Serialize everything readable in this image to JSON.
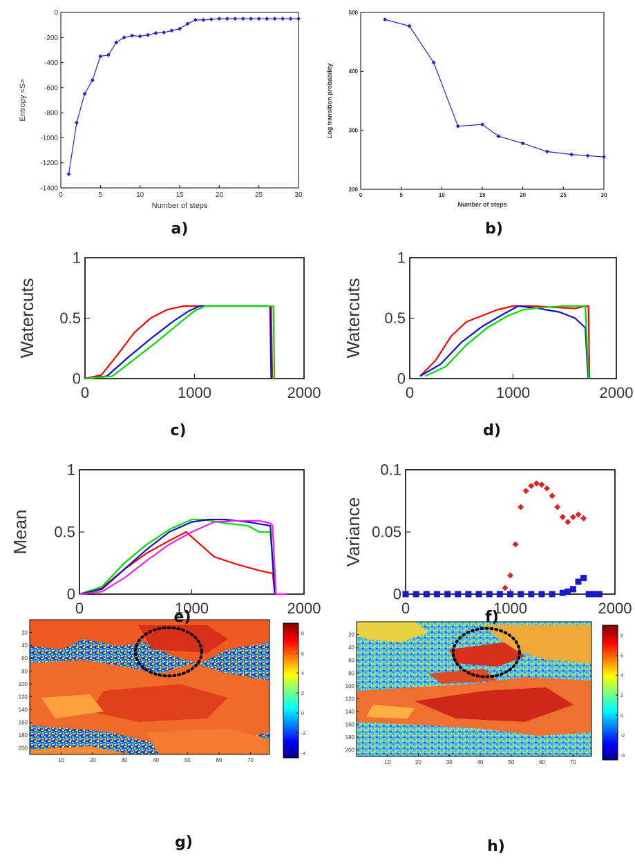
{
  "captions": [
    "a)",
    "b)",
    "c)",
    "d)",
    "e)",
    "f)",
    "g)",
    "h)"
  ],
  "chart_data": [
    {
      "id": "a",
      "type": "line",
      "xlabel": "Number of steps",
      "ylabel": "Entropy <S>",
      "xlim": [
        0,
        30
      ],
      "ylim": [
        -1400,
        0
      ],
      "xticks": [
        0,
        5,
        10,
        15,
        20,
        25,
        30
      ],
      "yticks": [
        0,
        -200,
        -400,
        -600,
        -800,
        -1000,
        -1200,
        -1400
      ],
      "color": "#2222cc",
      "series": [
        {
          "x": [
            1,
            2,
            3,
            4,
            5,
            6,
            7,
            8,
            9,
            10,
            11,
            12,
            13,
            14,
            15,
            16,
            17,
            18,
            19,
            20,
            21,
            22,
            23,
            24,
            25,
            26,
            27,
            28,
            29,
            30
          ],
          "y": [
            -1290,
            -880,
            -650,
            -540,
            -350,
            -340,
            -240,
            -200,
            -185,
            -190,
            -180,
            -165,
            -160,
            -145,
            -130,
            -90,
            -60,
            -60,
            -55,
            -50,
            -50,
            -50,
            -50,
            -50,
            -50,
            -50,
            -50,
            -50,
            -50,
            -50
          ]
        }
      ]
    },
    {
      "id": "b",
      "type": "line",
      "xlabel": "Number of steps",
      "ylabel": "Log transition probability",
      "xlim": [
        0,
        30
      ],
      "ylim": [
        200,
        500
      ],
      "xticks": [
        0,
        5,
        10,
        15,
        20,
        25,
        30
      ],
      "yticks": [
        200,
        300,
        400,
        500
      ],
      "color": "#2222cc",
      "series": [
        {
          "x": [
            3,
            6,
            9,
            12,
            15,
            17,
            20,
            23,
            26,
            28,
            30
          ],
          "y": [
            488,
            477,
            415,
            307,
            310,
            290,
            278,
            264,
            259,
            257,
            255
          ]
        }
      ]
    },
    {
      "id": "c",
      "type": "line",
      "xlabel": "",
      "ylabel": "Watercuts",
      "xlim": [
        0,
        2000
      ],
      "ylim": [
        0,
        1
      ],
      "xticks": [
        0,
        1000,
        2000
      ],
      "yticks": [
        0,
        0.5,
        1
      ],
      "series": [
        {
          "color": "#ff0000",
          "x": [
            0,
            150,
            300,
            450,
            600,
            750,
            900,
            1000,
            1200,
            1400,
            1600,
            1700,
            1710
          ],
          "y": [
            0,
            0.03,
            0.2,
            0.38,
            0.5,
            0.57,
            0.6,
            0.6,
            0.6,
            0.6,
            0.6,
            0.6,
            0
          ]
        },
        {
          "color": "#1010c8",
          "x": [
            0,
            200,
            400,
            600,
            800,
            950,
            1050,
            1200,
            1400,
            1600,
            1690,
            1700
          ],
          "y": [
            0,
            0.02,
            0.18,
            0.33,
            0.47,
            0.56,
            0.6,
            0.6,
            0.6,
            0.6,
            0.6,
            0
          ]
        },
        {
          "color": "#00dd00",
          "x": [
            0,
            250,
            450,
            650,
            850,
            1000,
            1100,
            1300,
            1500,
            1700,
            1720,
            1730
          ],
          "y": [
            0,
            0.02,
            0.16,
            0.3,
            0.45,
            0.56,
            0.6,
            0.6,
            0.6,
            0.6,
            0.6,
            0
          ]
        }
      ]
    },
    {
      "id": "d",
      "type": "line",
      "xlabel": "",
      "ylabel": "Watercuts",
      "xlim": [
        0,
        2000
      ],
      "ylim": [
        0,
        1
      ],
      "xticks": [
        0,
        1000,
        2000
      ],
      "yticks": [
        0,
        0.5,
        1
      ],
      "series": [
        {
          "color": "#ff0000",
          "x": [
            100,
            250,
            400,
            550,
            700,
            850,
            1000,
            1200,
            1400,
            1600,
            1700,
            1730,
            1740
          ],
          "y": [
            0.02,
            0.15,
            0.35,
            0.47,
            0.52,
            0.57,
            0.6,
            0.6,
            0.59,
            0.58,
            0.6,
            0.6,
            0
          ]
        },
        {
          "color": "#1010c8",
          "x": [
            100,
            300,
            500,
            700,
            900,
            1050,
            1250,
            1450,
            1600,
            1700,
            1720,
            1730
          ],
          "y": [
            0.02,
            0.12,
            0.3,
            0.43,
            0.53,
            0.6,
            0.58,
            0.55,
            0.5,
            0.42,
            0.1,
            0
          ]
        },
        {
          "color": "#00dd00",
          "x": [
            150,
            350,
            550,
            750,
            950,
            1100,
            1300,
            1500,
            1650,
            1700,
            1720,
            1735
          ],
          "y": [
            0.02,
            0.1,
            0.28,
            0.42,
            0.52,
            0.57,
            0.59,
            0.6,
            0.6,
            0.6,
            0.2,
            0
          ]
        }
      ]
    },
    {
      "id": "e",
      "type": "line",
      "xlabel": "",
      "ylabel": "Mean",
      "xlim": [
        0,
        2000
      ],
      "ylim": [
        0,
        1
      ],
      "xticks": [
        0,
        1000,
        2000
      ],
      "yticks": [
        0,
        0.5,
        1
      ],
      "series": [
        {
          "color": "#ff0000",
          "x": [
            0,
            200,
            400,
            600,
            800,
            950,
            1050,
            1200,
            1400,
            1600,
            1700,
            1720,
            1740,
            1850
          ],
          "y": [
            0,
            0.05,
            0.2,
            0.33,
            0.43,
            0.5,
            0.42,
            0.3,
            0.24,
            0.19,
            0.17,
            0.17,
            0,
            0
          ]
        },
        {
          "color": "#00dd00",
          "x": [
            0,
            200,
            400,
            600,
            800,
            1000,
            1100,
            1300,
            1500,
            1600,
            1700,
            1740
          ],
          "y": [
            0,
            0.06,
            0.25,
            0.4,
            0.52,
            0.6,
            0.6,
            0.57,
            0.55,
            0.5,
            0.5,
            0
          ]
        },
        {
          "color": "#1010c8",
          "x": [
            0,
            200,
            400,
            600,
            800,
            1000,
            1150,
            1300,
            1500,
            1700,
            1740
          ],
          "y": [
            0,
            0.04,
            0.2,
            0.36,
            0.5,
            0.58,
            0.6,
            0.6,
            0.58,
            0.55,
            0
          ]
        },
        {
          "color": "#ee22ee",
          "x": [
            0,
            200,
            400,
            600,
            800,
            1000,
            1200,
            1400,
            1600,
            1700,
            1720,
            1750,
            1850
          ],
          "y": [
            0,
            0.02,
            0.13,
            0.27,
            0.4,
            0.5,
            0.58,
            0.59,
            0.59,
            0.57,
            0.55,
            0,
            0
          ]
        }
      ]
    },
    {
      "id": "f",
      "type": "scatter",
      "xlabel": "",
      "ylabel": "Variance",
      "xlim": [
        0,
        2000
      ],
      "ylim": [
        0,
        0.1
      ],
      "xticks": [
        0,
        1000,
        2000
      ],
      "yticks": [
        0,
        0.05,
        0.1
      ],
      "series": [
        {
          "color": "#dd2222",
          "marker": "diamond",
          "x": [
            950,
            1000,
            1050,
            1100,
            1150,
            1200,
            1250,
            1300,
            1350,
            1400,
            1450,
            1500,
            1550,
            1600,
            1650,
            1700
          ],
          "y": [
            0.005,
            0.015,
            0.04,
            0.07,
            0.083,
            0.087,
            0.089,
            0.088,
            0.085,
            0.079,
            0.07,
            0.062,
            0.058,
            0.062,
            0.064,
            0.061
          ]
        },
        {
          "color": "#1a1acc",
          "marker": "square",
          "x": [
            0,
            100,
            200,
            300,
            400,
            500,
            600,
            700,
            800,
            900,
            1000,
            1100,
            1200,
            1300,
            1400,
            1500,
            1550,
            1600,
            1650,
            1700,
            1750,
            1800,
            1850
          ],
          "y": [
            0,
            0,
            0,
            0,
            0,
            0,
            0,
            0,
            0,
            0,
            0,
            0,
            0,
            0,
            0,
            0.001,
            0.002,
            0.004,
            0.01,
            0.013,
            0,
            0,
            0
          ]
        }
      ]
    },
    {
      "id": "g",
      "type": "heatmap",
      "xticks": [
        10,
        20,
        30,
        40,
        50,
        60,
        70
      ],
      "yticks": [
        20,
        40,
        60,
        80,
        100,
        120,
        140,
        160,
        180,
        200
      ],
      "xlim": [
        0,
        76
      ],
      "ylim": [
        0,
        210
      ],
      "colorbar_ticks": [
        8,
        6,
        4,
        2,
        0,
        -2,
        -4
      ],
      "colorbar_range": [
        -4.5,
        9
      ]
    },
    {
      "id": "h",
      "type": "heatmap",
      "xticks": [
        10,
        20,
        30,
        40,
        50,
        60,
        70
      ],
      "yticks": [
        20,
        40,
        60,
        80,
        100,
        120,
        140,
        160,
        180,
        200
      ],
      "xlim": [
        0,
        76
      ],
      "ylim": [
        0,
        210
      ],
      "colorbar_ticks": [
        8,
        6,
        4,
        2,
        0,
        -2,
        -4
      ],
      "colorbar_range": [
        -4.5,
        9
      ]
    }
  ]
}
